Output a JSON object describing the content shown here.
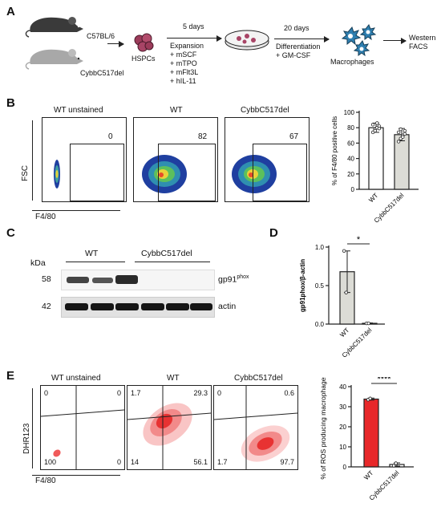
{
  "panel_A": {
    "letter": "A",
    "mouse_wt": "C57BL/6",
    "mouse_ko": "CybbC517del",
    "hspcs": "HSPCs",
    "step1_time": "5 days",
    "step1_lines": [
      "Expansion",
      "+ mSCF",
      "+ mTPO",
      "+ mFlt3L",
      "+ hIL-11"
    ],
    "step2_time": "20 days",
    "step2_lines": [
      "Differentiation",
      "+ GM-CSF"
    ],
    "macrophages": "Macrophages",
    "readout": [
      "Western",
      "FACS"
    ]
  },
  "panel_B": {
    "letter": "B",
    "plots": [
      {
        "title": "WT unstained",
        "gate_value": "0"
      },
      {
        "title": "WT",
        "gate_value": "82"
      },
      {
        "title": "CybbC517del",
        "gate_value": "67"
      }
    ],
    "y_axis_label": "FSC",
    "x_axis_label": "F4/80"
  },
  "panel_C": {
    "letter": "C",
    "kda": "kDa",
    "group_wt": "WT",
    "group_ko": "CybbC517del",
    "mw_top": "58",
    "mw_bottom": "42",
    "protein_top": "gp91",
    "protein_top_sup": "phox",
    "protein_bottom": "actin"
  },
  "panel_D": {
    "letter": "D",
    "significance": "*"
  },
  "panel_E": {
    "letter": "E",
    "plots": [
      {
        "title": "WT unstained",
        "q_ul": "0",
        "q_ur": "0",
        "q_ll": "100",
        "q_lr": "0"
      },
      {
        "title": "WT",
        "q_ul": "1.7",
        "q_ur": "29.3",
        "q_ll": "14",
        "q_lr": "56.1"
      },
      {
        "title": "CybbC517del",
        "q_ul": "0",
        "q_ur": "0.6",
        "q_ll": "1.7",
        "q_lr": "97.7"
      }
    ],
    "y_axis_label": "DHR123",
    "x_axis_label": "F4/80",
    "significance": "****"
  },
  "chart_data": [
    {
      "type": "bar",
      "id": "B-f480",
      "ylabel": "% of F4/80 positive cells",
      "categories": [
        "WT",
        "CybbC517del"
      ],
      "values": [
        80,
        71
      ],
      "errors": [
        6,
        8
      ],
      "points": [
        [
          74,
          78,
          80,
          82,
          84,
          76,
          86,
          79
        ],
        [
          62,
          66,
          70,
          72,
          74,
          78,
          68,
          76
        ]
      ],
      "ylim": [
        0,
        100
      ],
      "yticks": [
        "0",
        "20",
        "40",
        "60",
        "80",
        "100"
      ],
      "colors": [
        "#ffffff",
        "#dcdcd6"
      ]
    },
    {
      "type": "bar",
      "id": "D-gp91",
      "ylabel": "gp91phox/β-actin",
      "categories": [
        "WT",
        "CybbC517del"
      ],
      "values": [
        0.68,
        0.01
      ],
      "errors": [
        0.27,
        0.005
      ],
      "points": [
        [
          0.95,
          0.41
        ],
        [
          0.01,
          0.01
        ]
      ],
      "ylim": [
        0,
        1.0
      ],
      "yticks": [
        "0.0",
        "0.5",
        "1.0"
      ],
      "colors": [
        "#dcdcd6",
        "#ffffff"
      ]
    },
    {
      "type": "bar",
      "id": "E-ros",
      "ylabel": "% of ROS producing macrophages",
      "categories": [
        "WT",
        "CybbC517del"
      ],
      "values": [
        33.8,
        1.2
      ],
      "errors": [
        0.5,
        0.8
      ],
      "points": [
        [
          33.5,
          34.1
        ],
        [
          0.6,
          1.8
        ]
      ],
      "ylim": [
        0,
        40
      ],
      "yticks": [
        "0",
        "10",
        "20",
        "30",
        "40"
      ],
      "colors": [
        "#e8282a",
        "#ffffff"
      ]
    }
  ]
}
